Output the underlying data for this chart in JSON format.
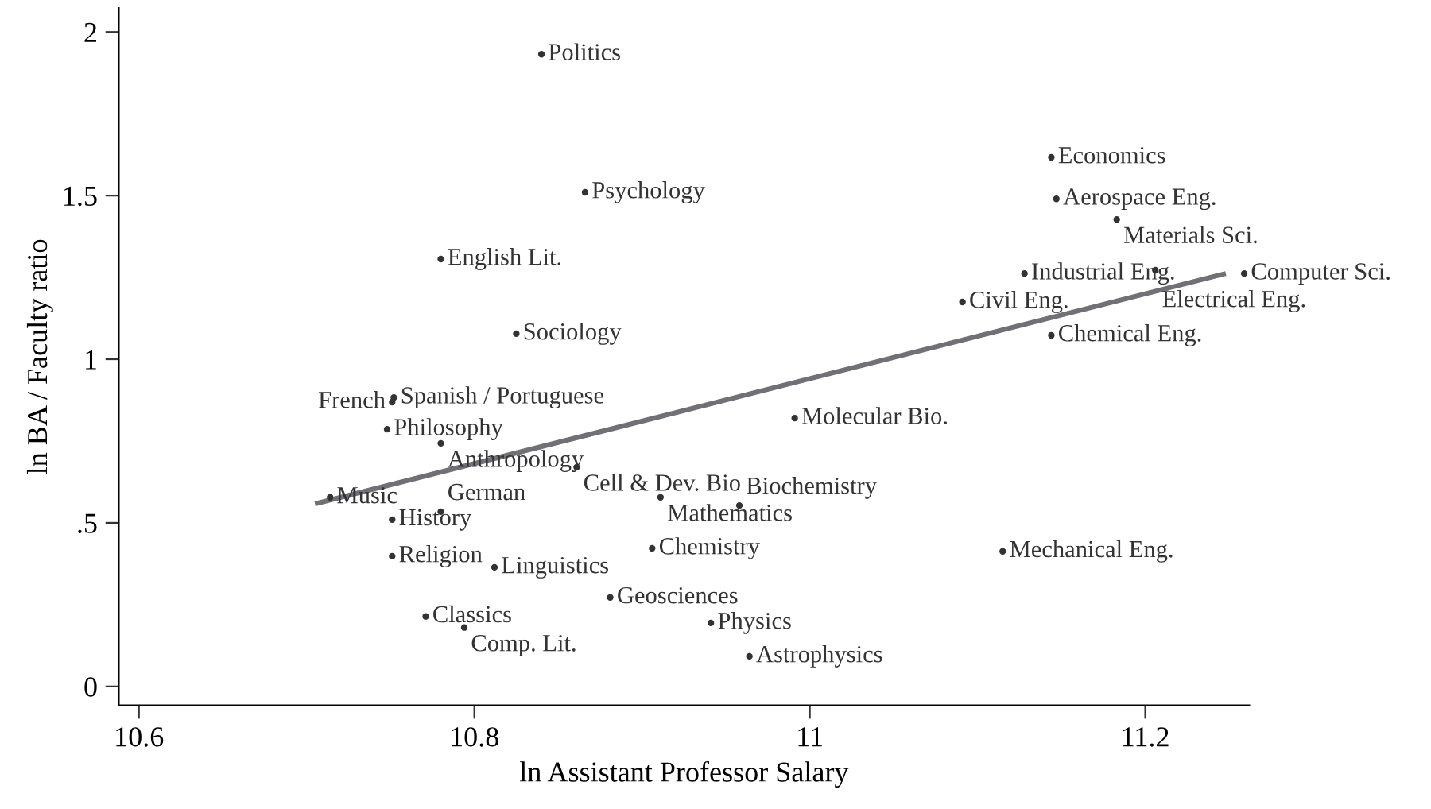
{
  "chart_data": {
    "type": "scatter",
    "xlabel": "ln Assistant Professor Salary",
    "ylabel": "ln BA / Faculty ratio",
    "xlim": [
      10.588,
      11.262
    ],
    "xticks": [
      10.6,
      10.8,
      11,
      11.2
    ],
    "ylim": [
      -0.058,
      2.073
    ],
    "yticks": [
      0,
      {
        "value": 0.5,
        "label": ".5"
      },
      1,
      1.5,
      2
    ],
    "grid": false,
    "series": [
      {
        "color": "#333333",
        "marker": "circle",
        "value_labels": [
          "Politics",
          "Psychology",
          "English Lit.",
          "Sociology",
          "Spanish / Portuguese",
          "French",
          "Philosophy",
          "Anthropology",
          "Cell & Dev. Bio",
          "Music",
          "History",
          "German",
          "Religion",
          "Linguistics",
          "Geosciences",
          "Classics",
          "Comp. Lit.",
          "Mathematics",
          "Chemistry",
          "Physics",
          "Astrophysics",
          "Biochemistry",
          "Molecular Bio.",
          "Mechanical Eng.",
          "Economics",
          "Aerospace Eng.",
          "Materials Sci.",
          "Industrial Eng.",
          "Electrical Eng.",
          "Computer Sci.",
          "Civil Eng.",
          "Chemical Eng."
        ],
        "x": [
          10.84,
          10.866,
          10.78,
          10.825,
          10.752,
          10.751,
          10.748,
          10.78,
          10.861,
          10.714,
          10.751,
          10.78,
          10.751,
          10.812,
          10.881,
          10.771,
          10.794,
          10.911,
          10.906,
          10.941,
          10.964,
          10.958,
          10.991,
          11.115,
          11.144,
          11.147,
          11.183,
          11.128,
          11.206,
          11.259,
          11.091,
          11.144
        ],
        "values": [
          1.932,
          1.51,
          1.306,
          1.078,
          0.883,
          0.869,
          0.786,
          0.743,
          0.67,
          0.578,
          0.51,
          0.534,
          0.398,
          0.364,
          0.272,
          0.214,
          0.18,
          0.578,
          0.422,
          0.194,
          0.092,
          0.553,
          0.82,
          0.413,
          1.617,
          1.49,
          1.427,
          1.262,
          1.272,
          1.262,
          1.175,
          1.073
        ]
      },
      {
        "type": "line",
        "color": "#707075",
        "x": [
          10.705,
          11.248
        ],
        "values": [
          0.558,
          1.262
        ]
      }
    ]
  }
}
